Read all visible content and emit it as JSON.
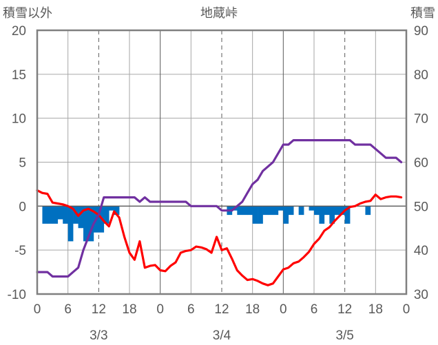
{
  "chart_data": {
    "type": "line",
    "title": "地蔵峠",
    "y_left_label": "積雪以外",
    "y_right_label": "積雪",
    "y_left_range": [
      -10,
      20
    ],
    "y_left_ticks": [
      "20",
      "15",
      "10",
      "5",
      "0",
      "-5",
      "-10"
    ],
    "y_right_range": [
      30,
      90
    ],
    "y_right_ticks": [
      "90",
      "80",
      "70",
      "60",
      "50",
      "40",
      "30"
    ],
    "x_range_hours": [
      0,
      72
    ],
    "x_tick_labels": [
      "0",
      "6",
      "12",
      "18",
      "0",
      "6",
      "12",
      "18",
      "0",
      "6",
      "12",
      "18",
      "0"
    ],
    "date_labels": [
      {
        "label": "3/3",
        "hour": 12
      },
      {
        "label": "3/4",
        "hour": 36
      },
      {
        "label": "3/5",
        "hour": 60
      }
    ],
    "grid": true,
    "series": [
      {
        "role": "bar",
        "axis": "left",
        "color": "#0070C0",
        "x": [
          0,
          1,
          2,
          3,
          4,
          5,
          6,
          7,
          8,
          9,
          10,
          11,
          12,
          13,
          14,
          15,
          16,
          17,
          18,
          19,
          20,
          21,
          22,
          23,
          24,
          25,
          26,
          27,
          28,
          29,
          30,
          31,
          32,
          33,
          34,
          35,
          36,
          37,
          38,
          39,
          40,
          41,
          42,
          43,
          44,
          45,
          46,
          47,
          48,
          49,
          50,
          51,
          52,
          53,
          54,
          55,
          56,
          57,
          58,
          59,
          60,
          61,
          62,
          63,
          64,
          65,
          66,
          67,
          68,
          69,
          70,
          71
        ],
        "values": [
          0,
          -2,
          -2,
          -2,
          -1.5,
          -2,
          -4,
          -2,
          -2.5,
          -4,
          -4,
          -3,
          -3,
          -2,
          -0.5,
          -1,
          0,
          0,
          0,
          0,
          0,
          0,
          0,
          0,
          0,
          0,
          0,
          0,
          0,
          0,
          0,
          0,
          0,
          0,
          0,
          0,
          0,
          -1,
          -0.5,
          -1,
          -1,
          -1,
          -2,
          -2,
          -1,
          -1,
          -1,
          -0.5,
          -2,
          -1,
          0,
          -1,
          0,
          -0.5,
          -1,
          -2,
          -1,
          -2,
          -1,
          -1,
          -2,
          0,
          0,
          0,
          -1,
          0,
          0,
          0,
          0,
          0,
          0,
          0
        ]
      },
      {
        "role": "line",
        "axis": "left",
        "color": "#FF0000",
        "x": [
          0,
          1,
          2,
          3,
          4,
          5,
          6,
          7,
          8,
          9,
          10,
          11,
          12,
          13,
          14,
          15,
          16,
          17,
          18,
          19,
          20,
          21,
          22,
          23,
          24,
          25,
          26,
          27,
          28,
          29,
          30,
          31,
          32,
          33,
          34,
          35,
          36,
          37,
          38,
          39,
          40,
          41,
          42,
          43,
          44,
          45,
          46,
          47,
          48,
          49,
          50,
          51,
          52,
          53,
          54,
          55,
          56,
          57,
          58,
          59,
          60,
          61,
          62,
          63,
          64,
          65,
          66,
          67,
          68,
          69,
          70,
          71
        ],
        "values": [
          1.8,
          1.5,
          1.4,
          0.4,
          0.3,
          0.2,
          0,
          -0.3,
          -1.1,
          -0.5,
          -0.3,
          -0.6,
          -1,
          -1.7,
          -2.3,
          -0.6,
          -1.3,
          -3.5,
          -5.3,
          -6.1,
          -4,
          -7,
          -6.8,
          -6.7,
          -7.3,
          -7.4,
          -6.8,
          -6.4,
          -5.3,
          -5.1,
          -5,
          -4.6,
          -4.7,
          -4.9,
          -5.3,
          -3.5,
          -5,
          -4.8,
          -6,
          -7.3,
          -7.9,
          -8.4,
          -8.3,
          -8.5,
          -8.8,
          -9,
          -8.8,
          -8,
          -7.2,
          -7,
          -6.5,
          -6.3,
          -5.8,
          -5.2,
          -4.3,
          -3.7,
          -2.8,
          -2.4,
          -1.7,
          -1.1,
          -0.5,
          -0.1,
          0,
          0.3,
          0.5,
          0.6,
          1.3,
          0.8,
          1,
          1.1,
          1.1,
          1
        ]
      },
      {
        "role": "line",
        "axis": "right",
        "color": "#7030A0",
        "x": [
          0,
          1,
          2,
          3,
          4,
          5,
          6,
          7,
          8,
          9,
          10,
          11,
          12,
          13,
          14,
          15,
          16,
          17,
          18,
          19,
          20,
          21,
          22,
          23,
          24,
          25,
          26,
          27,
          28,
          29,
          30,
          31,
          32,
          33,
          34,
          35,
          36,
          37,
          38,
          39,
          40,
          41,
          42,
          43,
          44,
          45,
          46,
          47,
          48,
          49,
          50,
          51,
          52,
          53,
          54,
          55,
          56,
          57,
          58,
          59,
          60,
          61,
          62,
          63,
          64,
          65,
          66,
          67,
          68,
          69,
          70,
          71
        ],
        "values": [
          35,
          35,
          35,
          34,
          34,
          34,
          34,
          35,
          36,
          40,
          43,
          46,
          48,
          52,
          52,
          52,
          52,
          52,
          52,
          52,
          51,
          52,
          51,
          51,
          51,
          51,
          51,
          51,
          51,
          51,
          50,
          50,
          50,
          50,
          50,
          50,
          49,
          49,
          49,
          50,
          51,
          53,
          55,
          56,
          58,
          59,
          60,
          62,
          64,
          64,
          65,
          65,
          65,
          65,
          65,
          65,
          65,
          65,
          65,
          65,
          65,
          65,
          64,
          64,
          64,
          64,
          63,
          62,
          61,
          61,
          61,
          60
        ]
      }
    ]
  }
}
